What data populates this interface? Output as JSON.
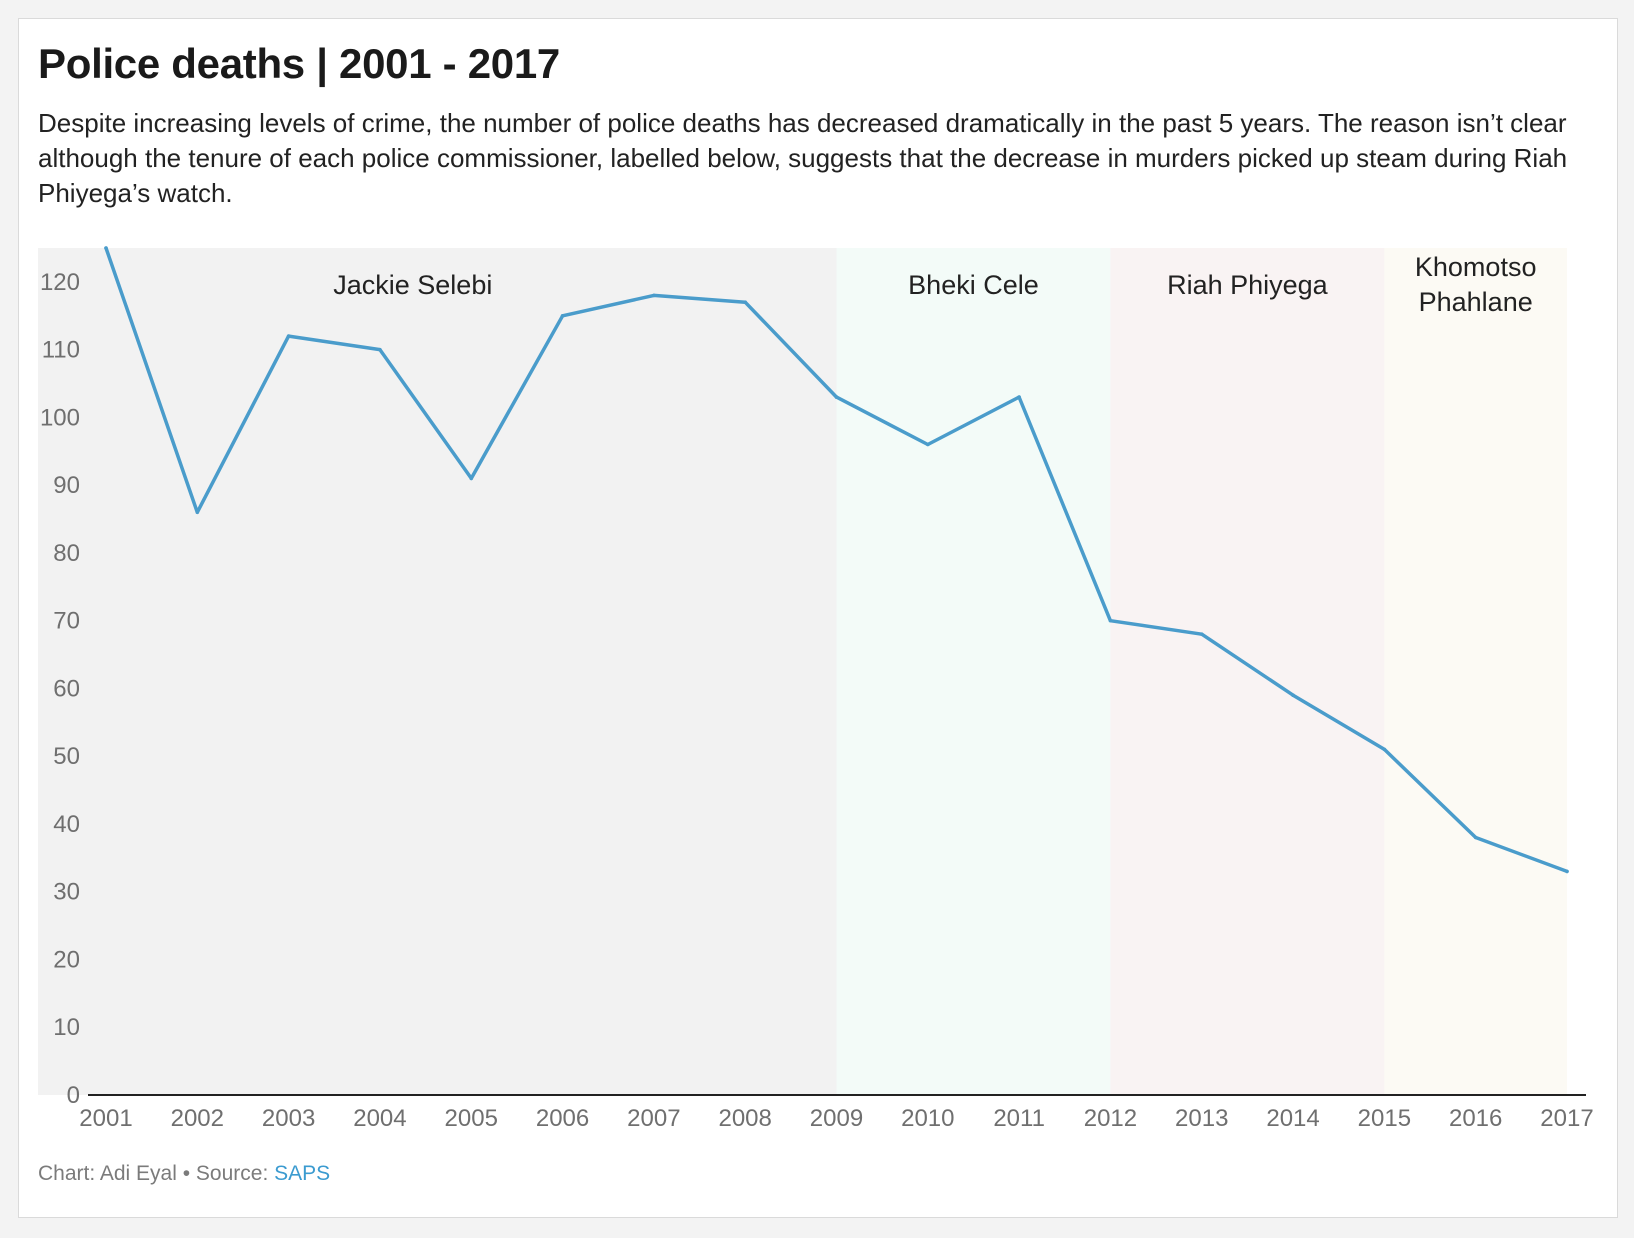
{
  "title": "Police deaths | 2001 - 2017",
  "subtitle": "Despite increasing levels of crime, the number of police deaths has decreased dramatically in the past 5 years. The reason isn’t clear although the tenure of each police commissioner, labelled below, suggests that the decrease in murders picked up steam during Riah Phiyega’s watch.",
  "footer": {
    "credit": "Chart: Adi Eyal • Source: ",
    "source_label": "SAPS"
  },
  "colors": {
    "line": "#4a9ccb",
    "link": "#3b9bd0"
  },
  "chart_data": {
    "type": "line",
    "x": [
      2001,
      2002,
      2003,
      2004,
      2005,
      2006,
      2007,
      2008,
      2009,
      2010,
      2011,
      2012,
      2013,
      2014,
      2015,
      2016,
      2017
    ],
    "values": [
      125,
      86,
      112,
      110,
      91,
      115,
      118,
      117,
      103,
      96,
      103,
      70,
      68,
      59,
      51,
      38,
      33
    ],
    "ylim": [
      0,
      125
    ],
    "yticks": [
      0,
      10,
      20,
      30,
      40,
      50,
      60,
      70,
      80,
      90,
      100,
      110,
      120
    ],
    "xticks": [
      "2001",
      "2002",
      "2003",
      "2004",
      "2005",
      "2006",
      "2007",
      "2008",
      "2009",
      "2010",
      "2011",
      "2012",
      "2013",
      "2014",
      "2015",
      "2016",
      "2017"
    ],
    "grid": false,
    "bands": [
      {
        "label": "Jackie Selebi",
        "start": 2001,
        "end": 2009,
        "color": "#f2f2f2"
      },
      {
        "label": "Bheki Cele",
        "start": 2009,
        "end": 2012,
        "color": "#f3fbf8"
      },
      {
        "label": "Riah Phiyega",
        "start": 2012,
        "end": 2015,
        "color": "#f9f3f3"
      },
      {
        "label": "Khomotso Phahlane",
        "label_lines": [
          "Khomotso",
          "Phahlane"
        ],
        "start": 2015,
        "end": 2017,
        "color": "#fcfaf4"
      }
    ]
  }
}
